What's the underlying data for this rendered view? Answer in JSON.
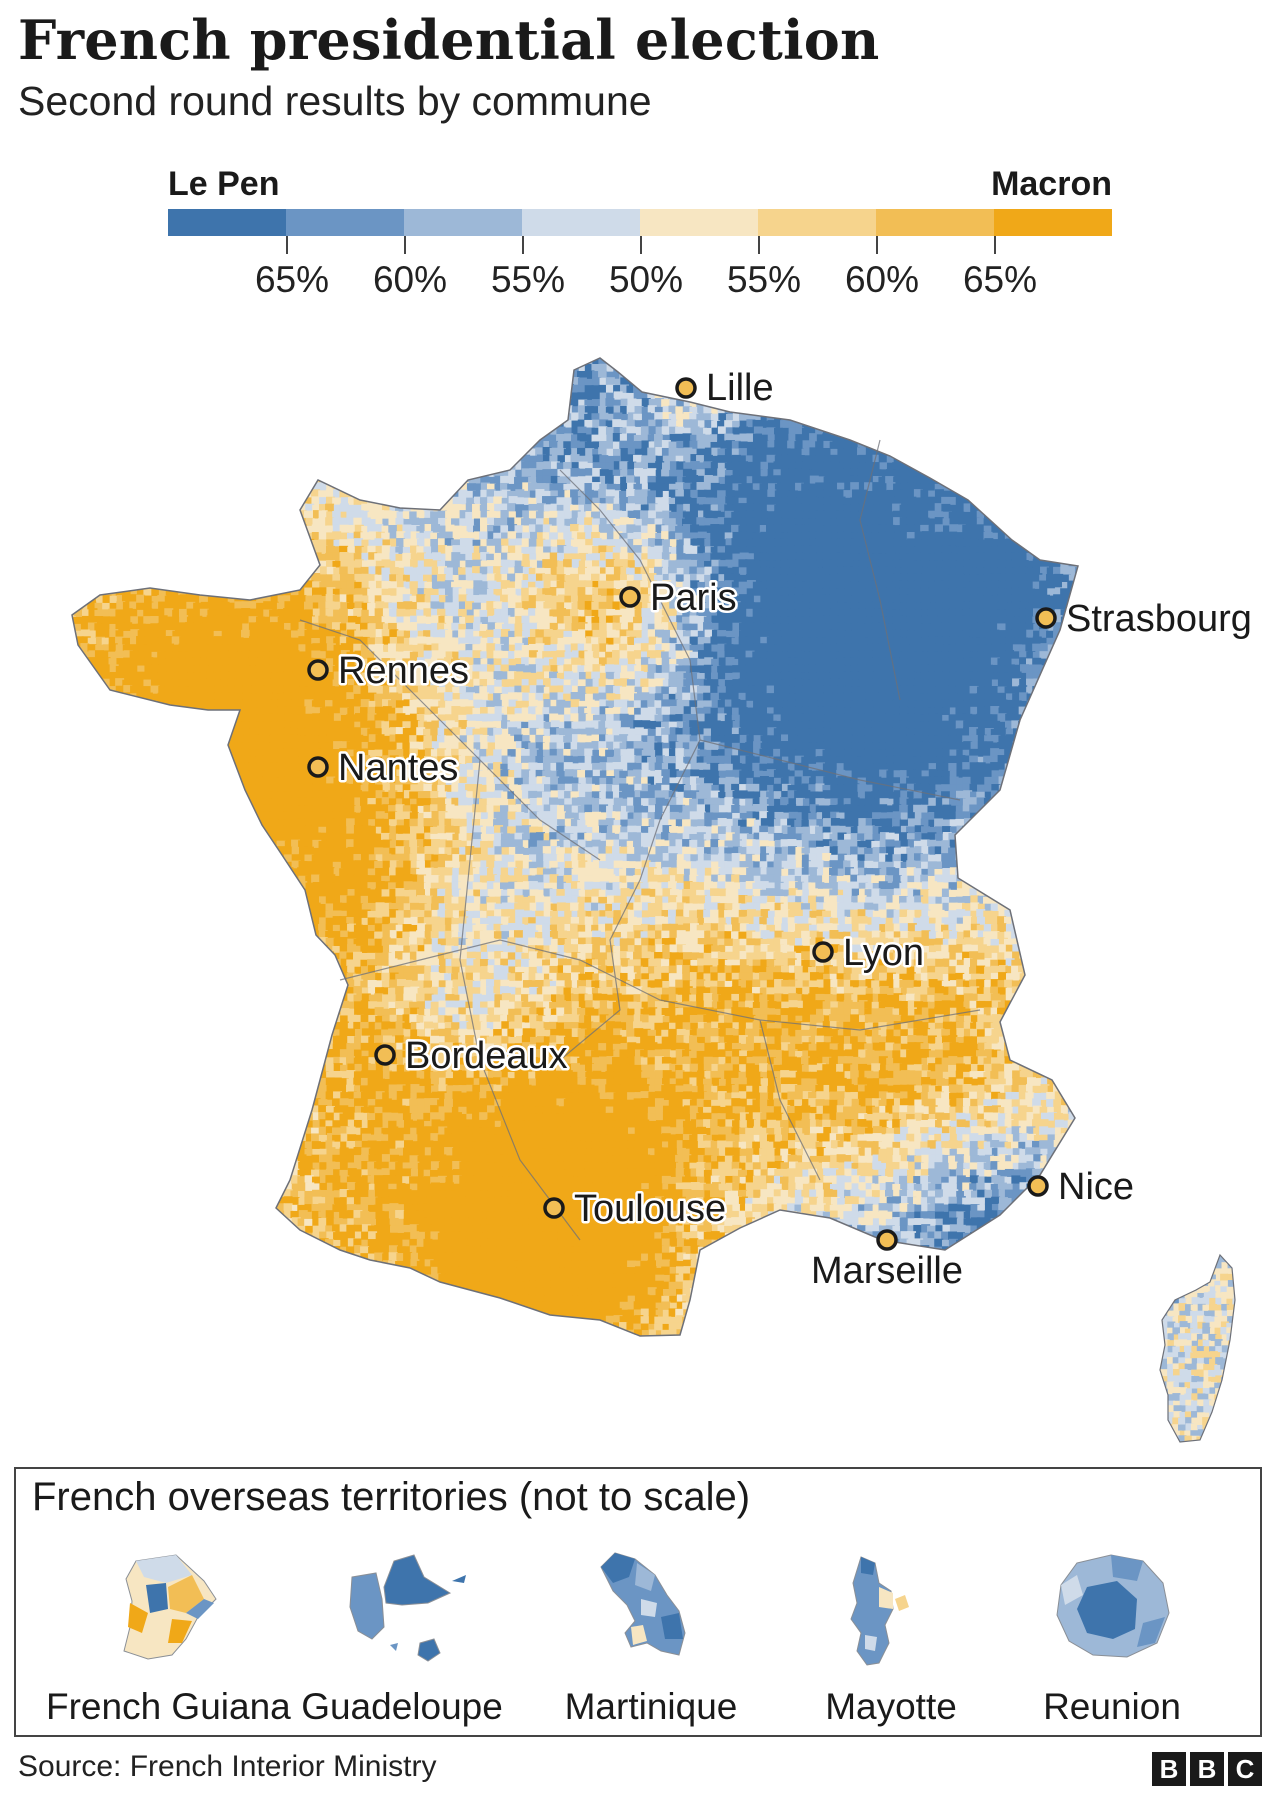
{
  "header": {
    "title": "French presidential election",
    "subtitle": "Second round results by commune"
  },
  "legend": {
    "left_label": "Le Pen",
    "right_label": "Macron",
    "colors": [
      "#3e74ac",
      "#6b95c4",
      "#9db8d7",
      "#cfdbe9",
      "#f7e6c2",
      "#f6d48d",
      "#f2be55",
      "#f0a818"
    ],
    "tick_labels": [
      "65%",
      "60%",
      "55%",
      "50%",
      "55%",
      "60%",
      "65%"
    ]
  },
  "map": {
    "cities": [
      {
        "name": "Lille"
      },
      {
        "name": "Paris"
      },
      {
        "name": "Strasbourg"
      },
      {
        "name": "Rennes"
      },
      {
        "name": "Nantes"
      },
      {
        "name": "Lyon"
      },
      {
        "name": "Bordeaux"
      },
      {
        "name": "Nice"
      },
      {
        "name": "Toulouse"
      },
      {
        "name": "Marseille"
      }
    ],
    "colors": {
      "le_pen_strong": "#3e74ac",
      "le_pen": "#6b95c4",
      "le_pen_light": "#9db8d7",
      "neutral_blue": "#cfdbe9",
      "neutral_yellow": "#f7e6c2",
      "macron_light": "#f6d48d",
      "macron": "#f2be55",
      "macron_strong": "#f0a818"
    }
  },
  "overseas": {
    "title": "French overseas territories (not to scale)",
    "territories": [
      {
        "name": "French Guiana"
      },
      {
        "name": "Guadeloupe"
      },
      {
        "name": "Martinique"
      },
      {
        "name": "Mayotte"
      },
      {
        "name": "Reunion"
      }
    ]
  },
  "footer": {
    "source": "Source: French Interior Ministry",
    "logo_letters": [
      "B",
      "B",
      "C"
    ]
  }
}
